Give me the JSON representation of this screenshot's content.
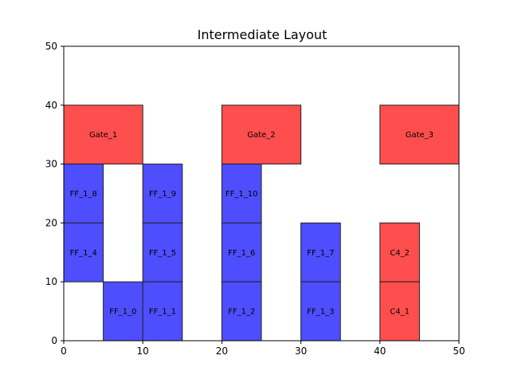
{
  "chart_data": {
    "type": "block-layout",
    "title": "Intermediate Layout",
    "xlabel": "",
    "ylabel": "",
    "xlim": [
      0,
      50
    ],
    "ylim": [
      0,
      50
    ],
    "xticks": [
      0,
      10,
      20,
      30,
      40,
      50
    ],
    "yticks": [
      0,
      10,
      20,
      30,
      40,
      50
    ],
    "grid": false,
    "legend": "none",
    "colors": {
      "blue": "#4444ff",
      "red": "#ff4444",
      "edge": "#222222",
      "axis": "#000000"
    },
    "blocks": [
      {
        "label": "Gate_1",
        "x": 0,
        "y": 30,
        "w": 10,
        "h": 10,
        "color": "red"
      },
      {
        "label": "Gate_2",
        "x": 20,
        "y": 30,
        "w": 10,
        "h": 10,
        "color": "red"
      },
      {
        "label": "Gate_3",
        "x": 40,
        "y": 30,
        "w": 10,
        "h": 10,
        "color": "red"
      },
      {
        "label": "FF_1_8",
        "x": 0,
        "y": 20,
        "w": 5,
        "h": 10,
        "color": "blue"
      },
      {
        "label": "FF_1_9",
        "x": 10,
        "y": 20,
        "w": 5,
        "h": 10,
        "color": "blue"
      },
      {
        "label": "FF_1_10",
        "x": 20,
        "y": 20,
        "w": 5,
        "h": 10,
        "color": "blue"
      },
      {
        "label": "FF_1_4",
        "x": 0,
        "y": 10,
        "w": 5,
        "h": 10,
        "color": "blue"
      },
      {
        "label": "FF_1_5",
        "x": 10,
        "y": 10,
        "w": 5,
        "h": 10,
        "color": "blue"
      },
      {
        "label": "FF_1_6",
        "x": 20,
        "y": 10,
        "w": 5,
        "h": 10,
        "color": "blue"
      },
      {
        "label": "FF_1_7",
        "x": 30,
        "y": 10,
        "w": 5,
        "h": 10,
        "color": "blue"
      },
      {
        "label": "C4_2",
        "x": 40,
        "y": 10,
        "w": 5,
        "h": 10,
        "color": "red"
      },
      {
        "label": "FF_1_0",
        "x": 5,
        "y": 0,
        "w": 5,
        "h": 10,
        "color": "blue"
      },
      {
        "label": "FF_1_1",
        "x": 10,
        "y": 0,
        "w": 5,
        "h": 10,
        "color": "blue"
      },
      {
        "label": "FF_1_2",
        "x": 20,
        "y": 0,
        "w": 5,
        "h": 10,
        "color": "blue"
      },
      {
        "label": "FF_1_3",
        "x": 30,
        "y": 0,
        "w": 5,
        "h": 10,
        "color": "blue"
      },
      {
        "label": "C4_1",
        "x": 40,
        "y": 0,
        "w": 5,
        "h": 10,
        "color": "red"
      }
    ]
  }
}
